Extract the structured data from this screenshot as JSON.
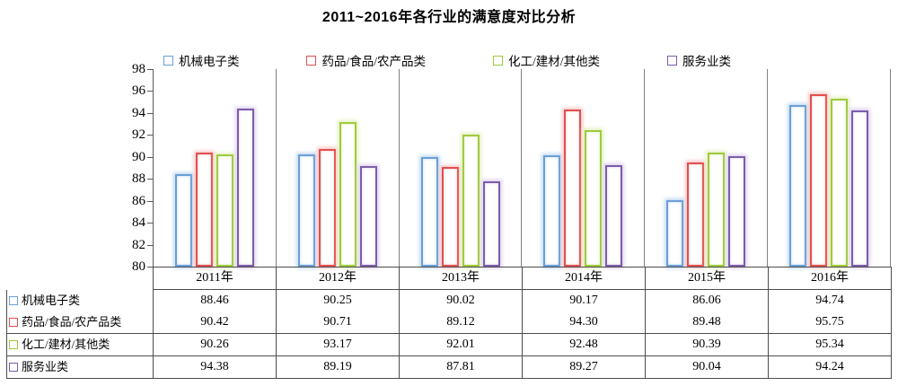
{
  "title": "2011~2016年各行业的满意度对比分析",
  "chart_data": {
    "type": "bar",
    "title": "2011~2016年各行业的满意度对比分析",
    "categories": [
      "2011年",
      "2012年",
      "2013年",
      "2014年",
      "2015年",
      "2016年"
    ],
    "series": [
      {
        "name": "机械电子类",
        "color": "#6A9FD8",
        "glow": "#C3D9F2",
        "values": [
          88.46,
          90.25,
          90.02,
          90.17,
          86.06,
          94.74
        ]
      },
      {
        "name": "药品/食品/农产品类",
        "color": "#E25050",
        "glow": "#F8C8C8",
        "values": [
          90.42,
          90.71,
          89.12,
          94.3,
          89.48,
          95.75
        ]
      },
      {
        "name": "化工/建材/其他类",
        "color": "#9FCB3C",
        "glow": "#E3F0C2",
        "values": [
          90.26,
          93.17,
          92.01,
          92.48,
          90.39,
          95.34
        ]
      },
      {
        "name": "服务业类",
        "color": "#7D5DAA",
        "glow": "#DDD2EF",
        "values": [
          94.38,
          89.19,
          87.81,
          89.27,
          90.04,
          94.24
        ]
      }
    ],
    "y_axis": {
      "min": 80,
      "max": 98,
      "step": 2,
      "ticks": [
        98,
        96,
        94,
        92,
        90,
        88,
        86,
        84,
        82,
        80
      ]
    },
    "legend_position": "top",
    "grid": "vertical-category-separators",
    "value_format_decimals": 2
  }
}
